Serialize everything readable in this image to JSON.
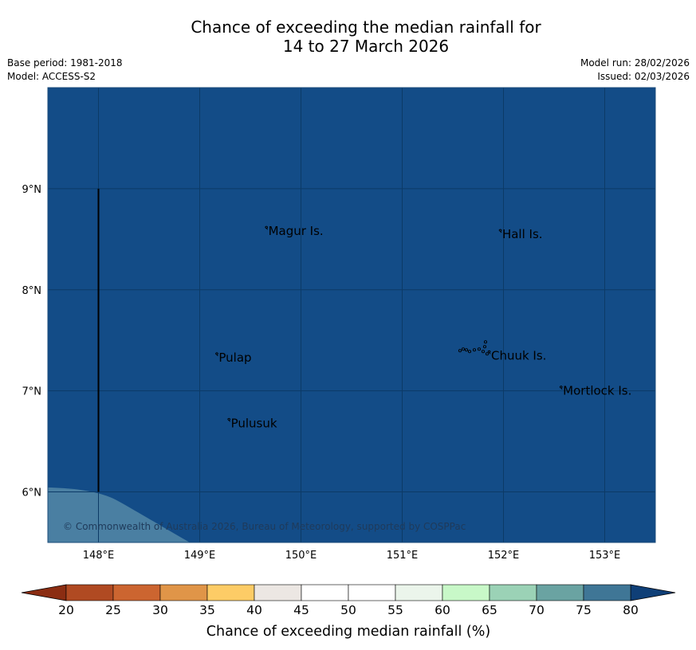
{
  "header": {
    "title_line1": "Chance of exceeding the median rainfall for",
    "title_line2": "14 to 27 March 2026",
    "base_period": "Base period: 1981-2018",
    "model": "Model: ACCESS-S2",
    "model_run": "Model run: 28/02/2026",
    "issued": "Issued: 02/03/2026"
  },
  "colors": {
    "ocean": "#134c87",
    "coast_shade": "#4a7fa2",
    "grid": "#0c3a66",
    "outline": "#1d4d7b"
  },
  "map": {
    "lon_range": [
      147.5,
      153.5
    ],
    "lat_range": [
      5.5,
      10.0
    ],
    "lat_labels": [
      {
        "lat": 9,
        "text": "9°N"
      },
      {
        "lat": 8,
        "text": "8°N"
      },
      {
        "lat": 7,
        "text": "7°N"
      },
      {
        "lat": 6,
        "text": "6°N"
      }
    ],
    "lon_labels": [
      {
        "lon": 148,
        "text": "148°E"
      },
      {
        "lon": 149,
        "text": "149°E"
      },
      {
        "lon": 150,
        "text": "150°E"
      },
      {
        "lon": 151,
        "text": "151°E"
      },
      {
        "lon": 152,
        "text": "152°E"
      },
      {
        "lon": 153,
        "text": "153°E"
      }
    ],
    "places": [
      {
        "name": "Magur Is.",
        "lon": 149.67,
        "lat": 8.58
      },
      {
        "name": "Hall Is.",
        "lon": 151.98,
        "lat": 8.55
      },
      {
        "name": "Pulap",
        "lon": 149.18,
        "lat": 7.33
      },
      {
        "name": "Chuuk Is.",
        "lon": 151.87,
        "lat": 7.35
      },
      {
        "name": "Mortlock Is.",
        "lon": 152.58,
        "lat": 7.0
      },
      {
        "name": "Pulusuk",
        "lon": 149.3,
        "lat": 6.68
      }
    ],
    "boundary_lon": 148.0,
    "boundary_lat_range": [
      6.0,
      9.0
    ],
    "copyright": "© Commonwealth of Australia 2026, Bureau of Meteorology, supported by COSPPac"
  },
  "colorbar": {
    "label": "Chance of exceeding median rainfall (%)",
    "ticks": [
      "20",
      "25",
      "30",
      "35",
      "40",
      "45",
      "50",
      "55",
      "60",
      "65",
      "70",
      "75",
      "80"
    ],
    "under_color": "#8b2d12",
    "over_color": "#0f3f77",
    "bins": [
      "#b04a22",
      "#cc6530",
      "#e09548",
      "#fdcc66",
      "#ece7e3",
      "#ffffff",
      "#ffffff",
      "#ebf5eb",
      "#c8f8c8",
      "#9bd2b6",
      "#6aa3a2",
      "#3f7696"
    ]
  }
}
